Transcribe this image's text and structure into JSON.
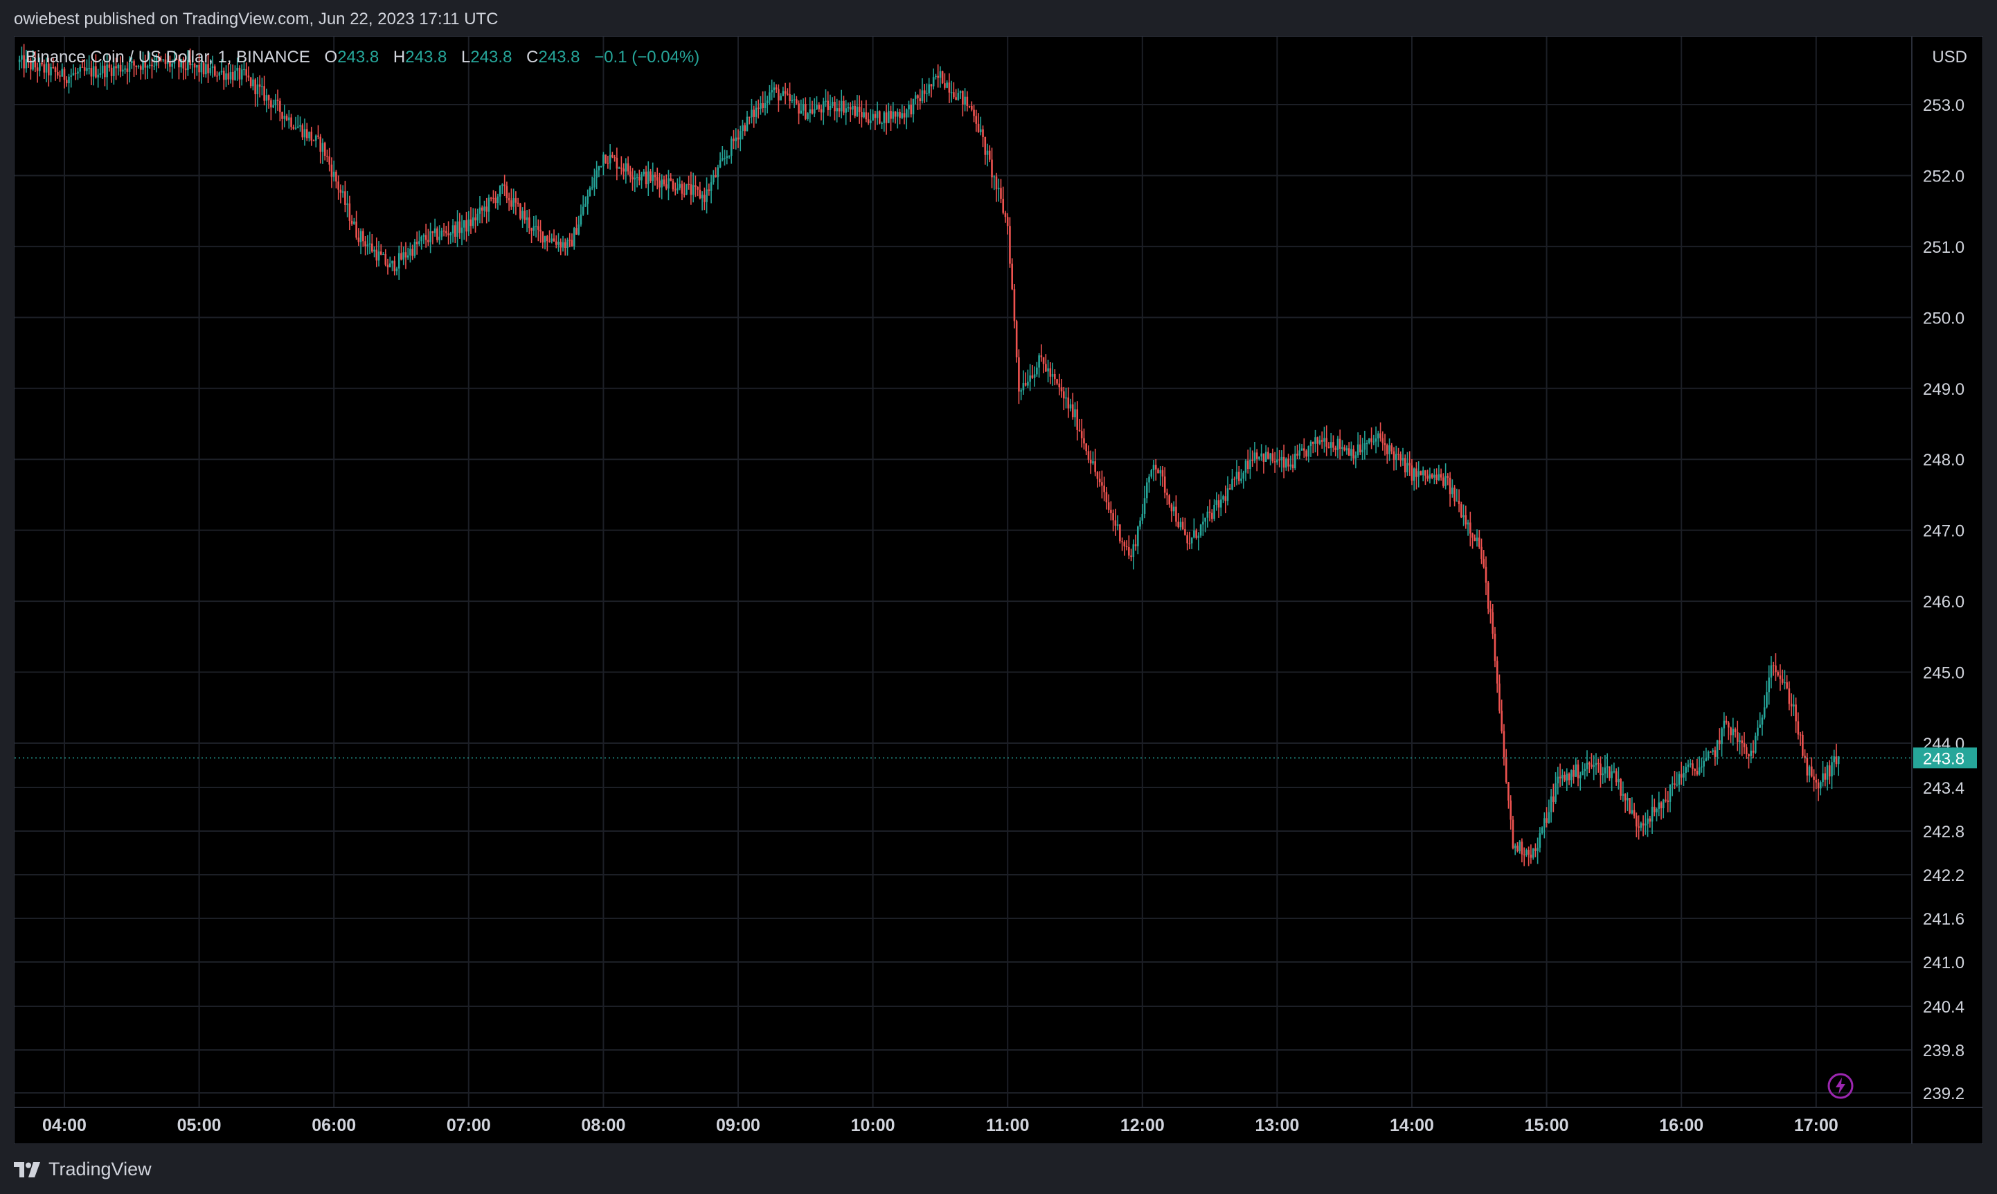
{
  "header": {
    "published": "owiebest published on TradingView.com, Jun 22, 2023 17:11 UTC"
  },
  "legend": {
    "symbol": "Binance Coin / US Dollar, 1, BINANCE",
    "o_label": "O",
    "o_value": "243.8",
    "h_label": "H",
    "h_value": "243.8",
    "l_label": "L",
    "l_value": "243.8",
    "c_label": "C",
    "c_value": "243.8",
    "change": "−0.1 (−0.04%)"
  },
  "axis": {
    "currency": "USD"
  },
  "footer": {
    "brand": "TradingView"
  },
  "colors": {
    "up": "#26a69a",
    "down": "#ef5350",
    "background": "#000000",
    "grid": "#1c1f26",
    "text": "#d1d4dc"
  },
  "icons": {
    "logo": "tradingview-logo-icon",
    "lightning": "lightning-icon"
  },
  "chart_data": {
    "type": "candlestick",
    "title": "Binance Coin / US Dollar, 1, BINANCE",
    "interval": "1 minute",
    "y_scale": "log",
    "y_ticks": [
      253.0,
      252.0,
      251.0,
      250.0,
      249.0,
      248.0,
      247.0,
      246.0,
      245.0,
      244.0,
      243.4,
      242.8,
      242.2,
      241.6,
      241.0,
      240.4,
      239.8,
      239.2
    ],
    "y_tick_labels": [
      "253.0",
      "252.0",
      "251.0",
      "250.0",
      "249.0",
      "248.0",
      "247.0",
      "246.0",
      "245.0",
      "244.0",
      "243.4",
      "242.8",
      "242.2",
      "241.6",
      "241.0",
      "240.4",
      "239.8",
      "239.2"
    ],
    "x_ticks": [
      "04:00",
      "05:00",
      "06:00",
      "07:00",
      "08:00",
      "09:00",
      "10:00",
      "11:00",
      "12:00",
      "13:00",
      "14:00",
      "15:00",
      "16:00",
      "17:00"
    ],
    "last_price": 243.8,
    "last_price_label": "243.8",
    "price_path": [
      [
        "03:40",
        253.6
      ],
      [
        "04:00",
        253.4
      ],
      [
        "04:20",
        253.5
      ],
      [
        "04:40",
        253.6
      ],
      [
        "05:00",
        253.5
      ],
      [
        "05:20",
        253.4
      ],
      [
        "05:40",
        252.8
      ],
      [
        "05:55",
        252.4
      ],
      [
        "06:10",
        251.2
      ],
      [
        "06:25",
        250.7
      ],
      [
        "06:40",
        251.1
      ],
      [
        "07:00",
        251.3
      ],
      [
        "07:15",
        251.8
      ],
      [
        "07:30",
        251.2
      ],
      [
        "07:45",
        251.0
      ],
      [
        "08:00",
        252.3
      ],
      [
        "08:15",
        252.0
      ],
      [
        "08:30",
        251.9
      ],
      [
        "08:45",
        251.7
      ],
      [
        "09:00",
        252.6
      ],
      [
        "09:15",
        253.2
      ],
      [
        "09:30",
        252.9
      ],
      [
        "09:45",
        253.0
      ],
      [
        "10:00",
        252.8
      ],
      [
        "10:15",
        252.9
      ],
      [
        "10:30",
        253.4
      ],
      [
        "10:45",
        252.9
      ],
      [
        "11:00",
        251.3
      ],
      [
        "11:05",
        249.0
      ],
      [
        "11:15",
        249.4
      ],
      [
        "11:30",
        248.6
      ],
      [
        "11:45",
        247.3
      ],
      [
        "11:55",
        246.6
      ],
      [
        "12:05",
        248.0
      ],
      [
        "12:20",
        246.8
      ],
      [
        "12:35",
        247.4
      ],
      [
        "12:50",
        248.1
      ],
      [
        "13:05",
        247.9
      ],
      [
        "13:20",
        248.3
      ],
      [
        "13:35",
        248.1
      ],
      [
        "13:45",
        248.3
      ],
      [
        "14:00",
        247.8
      ],
      [
        "14:15",
        247.7
      ],
      [
        "14:30",
        246.8
      ],
      [
        "14:35",
        245.8
      ],
      [
        "14:40",
        244.1
      ],
      [
        "14:45",
        242.6
      ],
      [
        "14:55",
        242.5
      ],
      [
        "15:05",
        243.5
      ],
      [
        "15:20",
        243.7
      ],
      [
        "15:30",
        243.6
      ],
      [
        "15:40",
        242.9
      ],
      [
        "15:50",
        243.1
      ],
      [
        "16:00",
        243.6
      ],
      [
        "16:10",
        243.7
      ],
      [
        "16:15",
        243.9
      ],
      [
        "16:20",
        244.3
      ],
      [
        "16:30",
        243.8
      ],
      [
        "16:35",
        244.2
      ],
      [
        "16:40",
        245.2
      ],
      [
        "16:50",
        244.5
      ],
      [
        "16:55",
        243.7
      ],
      [
        "17:00",
        243.4
      ],
      [
        "17:10",
        243.8
      ]
    ]
  }
}
